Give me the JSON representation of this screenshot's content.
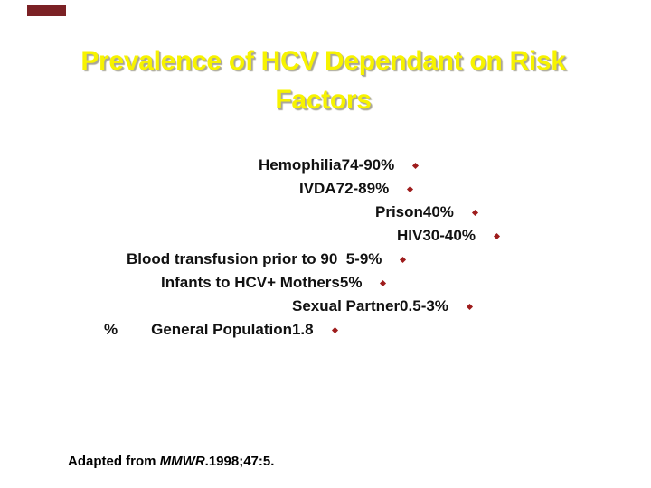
{
  "slide": {
    "title": {
      "line1": "Prevalence of HCV Dependant on Risk",
      "line2": "Factors"
    },
    "items": [
      {
        "text": "Hemophilia74-90%"
      },
      {
        "text": "IVDA72-89%"
      },
      {
        "text": "Prison40%"
      },
      {
        "text": "HIV30-40%"
      },
      {
        "text": "Blood transfusion prior to 90  5-9%"
      },
      {
        "text": "Infants to HCV+ Mothers5%"
      },
      {
        "text": "Sexual Partner0.5-3%"
      },
      {
        "axis_label": "%",
        "text": "General Population1.8"
      }
    ],
    "footer": {
      "prefix": "Adapted from ",
      "journal": "MMWR",
      "suffix": ".1998;47:5."
    }
  },
  "colors": {
    "title_yellow": "#f7f300",
    "title_shadow": "#a9a697",
    "bullet_red": "#9e1c1c",
    "accent_bar": "#7b2125",
    "body_text": "#111111"
  }
}
